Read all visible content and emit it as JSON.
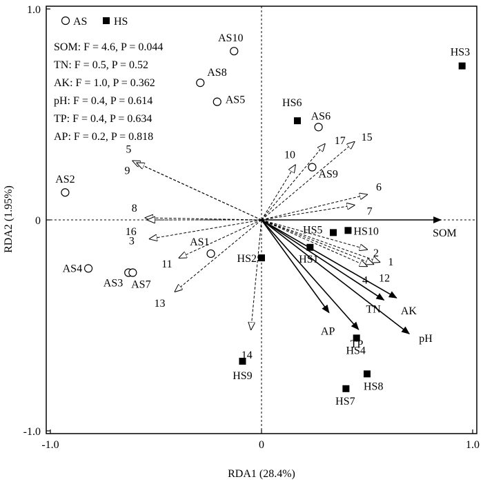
{
  "chart_data": {
    "type": "scatter",
    "xlabel": "RDA1 (28.4%)",
    "ylabel": "RDA2 (1.95%)",
    "xlim": [
      -1.02,
      1.02
    ],
    "ylim": [
      -1.02,
      1.02
    ],
    "xticks": [
      {
        "v": -1,
        "label": "-1.0"
      },
      {
        "v": 0,
        "label": "0"
      },
      {
        "v": 1,
        "label": "1.0"
      }
    ],
    "yticks": [
      {
        "v": 1,
        "label": "1.0"
      },
      {
        "v": 0,
        "label": "0"
      },
      {
        "v": -1,
        "label": "-1.0"
      }
    ],
    "legend": {
      "placement": "top-left",
      "entries": [
        {
          "name": "AS",
          "marker": "open-circle"
        },
        {
          "name": "HS",
          "marker": "filled-square"
        }
      ]
    },
    "stats": [
      {
        "var": "SOM",
        "text": "SOM: F = 4.6, P = 0.044"
      },
      {
        "var": "TN",
        "text": "TN: F = 0.5, P = 0.52"
      },
      {
        "var": "AK",
        "text": "AK: F = 1.0, P = 0.362"
      },
      {
        "var": "pH",
        "text": "pH: F = 0.4, P = 0.614"
      },
      {
        "var": "TP",
        "text": "TP: F = 0.4, P = 0.634"
      },
      {
        "var": "AP",
        "text": "AP: F = 0.2, P = 0.818"
      }
    ],
    "sites": [
      {
        "name": "AS2",
        "group": "AS",
        "x": -0.93,
        "y": 0.13
      },
      {
        "name": "AS4",
        "group": "AS",
        "x": -0.82,
        "y": -0.23
      },
      {
        "name": "AS3",
        "group": "AS",
        "x": -0.63,
        "y": -0.25
      },
      {
        "name": "AS7",
        "group": "AS",
        "x": -0.61,
        "y": -0.25
      },
      {
        "name": "AS1",
        "group": "AS",
        "x": -0.24,
        "y": -0.16
      },
      {
        "name": "AS10",
        "group": "AS",
        "x": -0.13,
        "y": 0.8
      },
      {
        "name": "AS8",
        "group": "AS",
        "x": -0.29,
        "y": 0.65
      },
      {
        "name": "AS5",
        "group": "AS",
        "x": -0.21,
        "y": 0.56
      },
      {
        "name": "AS6",
        "group": "AS",
        "x": 0.27,
        "y": 0.44
      },
      {
        "name": "AS9",
        "group": "AS",
        "x": 0.24,
        "y": 0.25
      },
      {
        "name": "HS6",
        "group": "HS",
        "x": 0.17,
        "y": 0.47
      },
      {
        "name": "HS3",
        "group": "HS",
        "x": 0.95,
        "y": 0.73
      },
      {
        "name": "HS5",
        "group": "HS",
        "x": 0.34,
        "y": -0.06
      },
      {
        "name": "HS10",
        "group": "HS",
        "x": 0.41,
        "y": -0.05
      },
      {
        "name": "HS1",
        "group": "HS",
        "x": 0.23,
        "y": -0.13
      },
      {
        "name": "HS2",
        "group": "HS",
        "x": 0.0,
        "y": -0.18
      },
      {
        "name": "HS4",
        "group": "HS",
        "x": 0.45,
        "y": -0.56
      },
      {
        "name": "HS9",
        "group": "HS",
        "x": -0.09,
        "y": -0.67
      },
      {
        "name": "HS8",
        "group": "HS",
        "x": 0.5,
        "y": -0.73
      },
      {
        "name": "HS7",
        "group": "HS",
        "x": 0.4,
        "y": -0.8
      }
    ],
    "species_arrows": [
      {
        "name": "5",
        "x": -0.61,
        "y": 0.28
      },
      {
        "name": "9",
        "x": -0.59,
        "y": 0.27
      },
      {
        "name": "8",
        "x": -0.55,
        "y": 0.01
      },
      {
        "name": "16",
        "x": -0.54,
        "y": 0.0
      },
      {
        "name": "3",
        "x": -0.53,
        "y": -0.09
      },
      {
        "name": "11",
        "x": -0.39,
        "y": -0.18
      },
      {
        "name": "13",
        "x": -0.41,
        "y": -0.34
      },
      {
        "name": "14",
        "x": -0.05,
        "y": -0.52
      },
      {
        "name": "10",
        "x": 0.16,
        "y": 0.26
      },
      {
        "name": "17",
        "x": 0.3,
        "y": 0.36
      },
      {
        "name": "15",
        "x": 0.44,
        "y": 0.37
      },
      {
        "name": "6",
        "x": 0.5,
        "y": 0.12
      },
      {
        "name": "7",
        "x": 0.44,
        "y": 0.07
      },
      {
        "name": "2",
        "x": 0.5,
        "y": -0.14
      },
      {
        "name": "1",
        "x": 0.56,
        "y": -0.2
      },
      {
        "name": "4",
        "x": 0.5,
        "y": -0.22
      },
      {
        "name": "12",
        "x": 0.53,
        "y": -0.21
      }
    ],
    "env_arrows": [
      {
        "name": "SOM",
        "x": 0.85,
        "y": 0.0
      },
      {
        "name": "AK",
        "x": 0.64,
        "y": -0.37
      },
      {
        "name": "TN",
        "x": 0.58,
        "y": -0.38
      },
      {
        "name": "pH",
        "x": 0.7,
        "y": -0.54
      },
      {
        "name": "TP",
        "x": 0.46,
        "y": -0.52
      },
      {
        "name": "AP",
        "x": 0.32,
        "y": -0.44
      }
    ]
  }
}
